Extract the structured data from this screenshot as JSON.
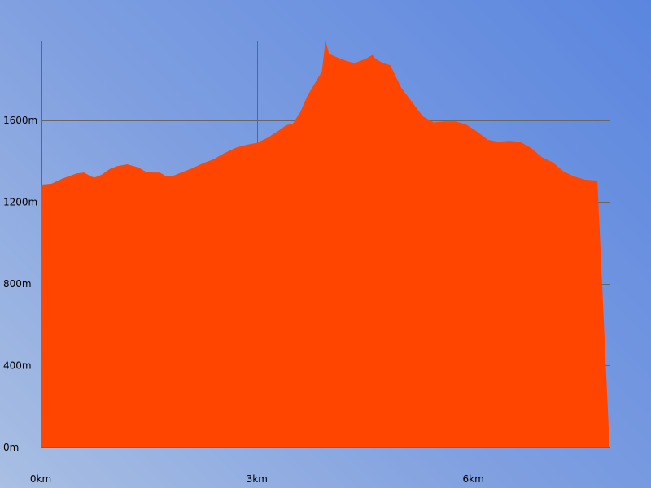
{
  "chart_data": {
    "type": "area",
    "title": "",
    "xlabel": "",
    "ylabel": "",
    "x_unit": "km",
    "y_unit": "m",
    "xlim": [
      0,
      7.9
    ],
    "ylim": [
      0,
      1990
    ],
    "x_ticks": [
      {
        "value": 0,
        "label": "0km"
      },
      {
        "value": 3,
        "label": "3km"
      },
      {
        "value": 6,
        "label": "6km"
      }
    ],
    "y_ticks": [
      {
        "value": 0,
        "label": "0m"
      },
      {
        "value": 400,
        "label": "400m"
      },
      {
        "value": 800,
        "label": "800m"
      },
      {
        "value": 1200,
        "label": "1200m"
      },
      {
        "value": 1600,
        "label": "1600m"
      }
    ],
    "grid": true,
    "fill_color": "#ff4500",
    "series": [
      {
        "x": [
          0,
          0.15,
          0.3,
          0.5,
          0.6,
          0.7,
          0.75,
          0.85,
          0.95,
          1.05,
          1.2,
          1.35,
          1.45,
          1.55,
          1.65,
          1.75,
          1.85,
          1.95,
          2.1,
          2.25,
          2.4,
          2.55,
          2.7,
          2.85,
          3.0,
          3.15,
          3.3,
          3.4,
          3.5,
          3.6,
          3.7,
          3.8,
          3.9,
          3.95,
          4.0,
          4.1,
          4.25,
          4.35,
          4.5,
          4.6,
          4.65,
          4.75,
          4.85,
          5.0,
          5.15,
          5.3,
          5.45,
          5.6,
          5.75,
          5.9,
          6.05,
          6.2,
          6.35,
          6.5,
          6.65,
          6.8,
          6.95,
          7.1,
          7.25,
          7.4,
          7.55,
          7.72,
          7.89
        ],
        "y": [
          1285,
          1290,
          1315,
          1340,
          1345,
          1325,
          1320,
          1335,
          1360,
          1375,
          1385,
          1370,
          1350,
          1345,
          1345,
          1325,
          1330,
          1345,
          1365,
          1390,
          1410,
          1440,
          1465,
          1480,
          1490,
          1515,
          1550,
          1575,
          1585,
          1640,
          1720,
          1780,
          1840,
          1990,
          1925,
          1910,
          1890,
          1880,
          1900,
          1920,
          1900,
          1880,
          1870,
          1760,
          1690,
          1620,
          1590,
          1595,
          1595,
          1580,
          1545,
          1505,
          1495,
          1500,
          1495,
          1465,
          1420,
          1395,
          1350,
          1325,
          1310,
          1305,
          0
        ]
      }
    ]
  }
}
